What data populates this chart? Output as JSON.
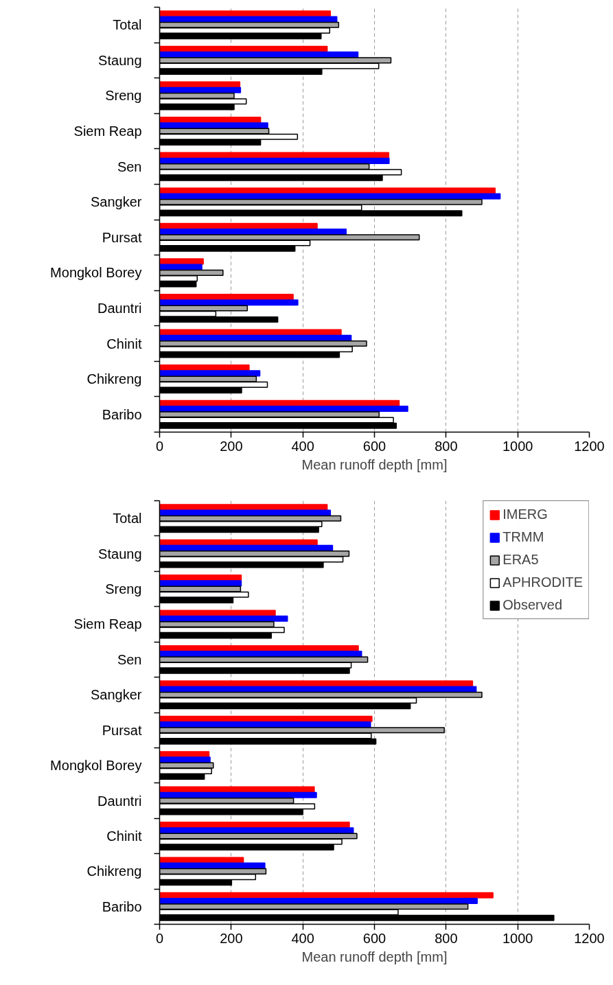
{
  "chart_data": [
    {
      "type": "bar",
      "orientation": "horizontal",
      "xlabel": "Mean runoff depth [mm]",
      "categories": [
        "Total",
        "Staung",
        "Sreng",
        "Siem Reap",
        "Sen",
        "Sangker",
        "Pursat",
        "Mongkol Borey",
        "Dauntri",
        "Chinit",
        "Chikreng",
        "Baribo"
      ],
      "series": [
        {
          "color": "#ff0000",
          "values": [
            477,
            468,
            224,
            282,
            640,
            937,
            440,
            122,
            373,
            507,
            250,
            669
          ]
        },
        {
          "color": "#0000ff",
          "values": [
            495,
            554,
            226,
            302,
            641,
            951,
            521,
            118,
            386,
            535,
            280,
            693
          ]
        },
        {
          "color": "#a6a6a6",
          "values": [
            500,
            646,
            208,
            305,
            585,
            900,
            725,
            177,
            245,
            578,
            270,
            613
          ]
        },
        {
          "color": "#ffffff",
          "values": [
            475,
            612,
            242,
            385,
            675,
            564,
            420,
            105,
            157,
            538,
            301,
            653
          ]
        },
        {
          "color": "#000000",
          "values": [
            451,
            453,
            208,
            282,
            622,
            844,
            378,
            102,
            330,
            502,
            229,
            661
          ]
        }
      ],
      "xlim": [
        0,
        1200
      ],
      "xticks": [
        0,
        200,
        400,
        600,
        800,
        1000,
        1200
      ],
      "grid": "x",
      "legend": false
    },
    {
      "type": "bar",
      "orientation": "horizontal",
      "xlabel": "Mean runoff depth [mm]",
      "categories": [
        "Total",
        "Staung",
        "Sreng",
        "Siem Reap",
        "Sen",
        "Sangker",
        "Pursat",
        "Mongkol Borey",
        "Dauntri",
        "Chinit",
        "Chikreng",
        "Baribo"
      ],
      "series": [
        {
          "name": "IMERG",
          "color": "#ff0000",
          "values": [
            468,
            440,
            228,
            323,
            555,
            874,
            593,
            138,
            432,
            530,
            234,
            931
          ]
        },
        {
          "name": "TRMM",
          "color": "#0000ff",
          "values": [
            477,
            483,
            228,
            357,
            564,
            884,
            589,
            141,
            438,
            541,
            294,
            887
          ]
        },
        {
          "name": "ERA5",
          "color": "#a6a6a6",
          "values": [
            506,
            529,
            226,
            319,
            581,
            900,
            795,
            150,
            374,
            551,
            297,
            861
          ]
        },
        {
          "name": "APHRODITE",
          "color": "#ffffff",
          "values": [
            453,
            512,
            248,
            348,
            535,
            717,
            591,
            145,
            433,
            509,
            268,
            666
          ]
        },
        {
          "name": "Observed",
          "color": "#000000",
          "values": [
            444,
            457,
            205,
            312,
            530,
            700,
            604,
            125,
            400,
            486,
            201,
            1101
          ]
        }
      ],
      "xlim": [
        0,
        1200
      ],
      "xticks": [
        0,
        200,
        400,
        600,
        800,
        1000,
        1200
      ],
      "grid": "x",
      "legend": "top right"
    }
  ]
}
